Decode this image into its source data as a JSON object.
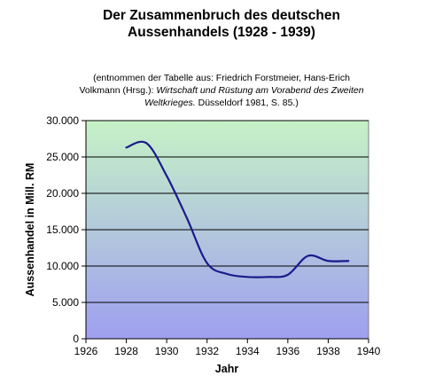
{
  "header": {
    "title_line1": "Der Zusammenbruch des deutschen",
    "title_line2": "Aussenhandels (1928 - 1939)",
    "source_line1": "(entnommen der Tabelle aus: Friedrich Forstmeier, Hans-Erich",
    "source_line2_plain": "Volkmann (Hrsg.): ",
    "source_line2_italic": "Wirtschaft und Rüstung am Vorabend des Zweiten",
    "source_line3_italic": "Weltkrieges.",
    "source_line3_plain": " Düsseldorf 1981, S. 85.)"
  },
  "chart_data": {
    "type": "line",
    "title": "Der Zusammenbruch des deutschen Aussenhandels (1928 - 1939)",
    "xlabel": "Jahr",
    "ylabel": "Aussenhandel in Mill. RM",
    "xlim": [
      1926,
      1940
    ],
    "ylim": [
      0,
      30000
    ],
    "x_ticks": [
      1926,
      1928,
      1930,
      1932,
      1934,
      1936,
      1938,
      1940
    ],
    "y_ticks": [
      0,
      5000,
      10000,
      15000,
      20000,
      25000,
      30000
    ],
    "y_tick_labels": [
      "0",
      "5.000",
      "10.000",
      "15.000",
      "20.000",
      "25.000",
      "30.000"
    ],
    "grid": "horizontal",
    "legend": "none",
    "line_color": "#1a1a8c",
    "background_gradient": [
      "#c6f2c6",
      "#9f9ff0"
    ],
    "series": [
      {
        "x": [
          1928,
          1929,
          1930,
          1931,
          1932,
          1933,
          1934,
          1935,
          1936,
          1937,
          1938,
          1939
        ],
        "values": [
          26300,
          26900,
          22400,
          16600,
          10400,
          8900,
          8500,
          8500,
          8800,
          11400,
          10700,
          10700
        ]
      }
    ]
  }
}
